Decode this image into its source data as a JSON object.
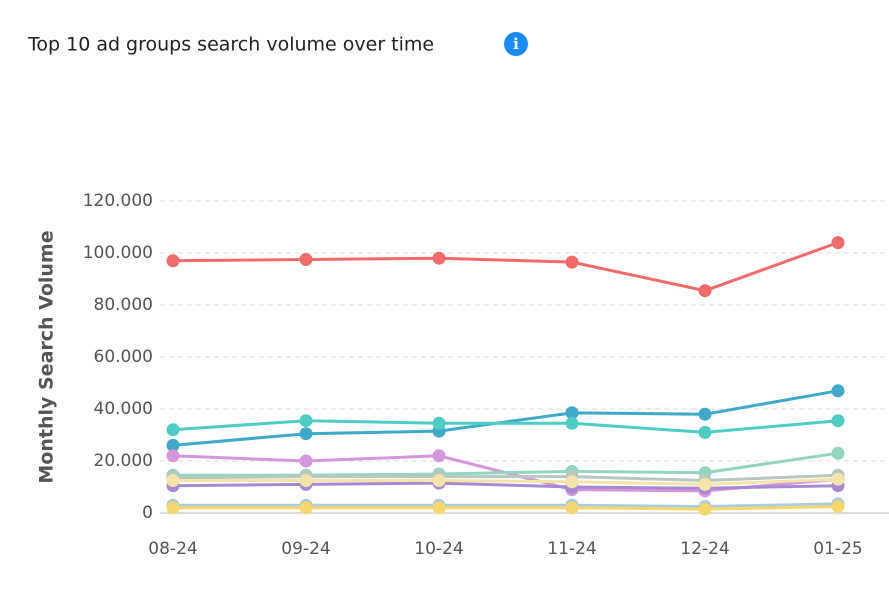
{
  "chart_data": {
    "type": "line",
    "title": "Top 10 ad groups search volume over time",
    "y_label": "Monthly Search Volume",
    "categories": [
      "08-24",
      "09-24",
      "10-24",
      "11-24",
      "12-24",
      "01-25"
    ],
    "ylim": [
      0,
      120000
    ],
    "yticks": [
      0,
      {
        "value": 20000,
        "label": "20.000"
      },
      {
        "value": 40000,
        "label": "40.000"
      },
      {
        "value": 60000,
        "label": "60.000"
      },
      {
        "value": 80000,
        "label": "80.000"
      },
      {
        "value": 100000,
        "label": "100.000"
      },
      {
        "value": 120000,
        "label": "120.000"
      }
    ],
    "grid": true,
    "series": [
      {
        "color": "#f26b6b",
        "values": [
          97000,
          97500,
          98000,
          96500,
          85500,
          104000
        ]
      },
      {
        "color": "#3fa9c9",
        "values": [
          26000,
          30500,
          31500,
          38500,
          38000,
          47000
        ]
      },
      {
        "color": "#4ecdc4",
        "values": [
          32000,
          35500,
          34500,
          34500,
          31000,
          35500
        ]
      },
      {
        "color": "#d597dc",
        "values": [
          22000,
          20000,
          22000,
          9000,
          8500,
          13000
        ]
      },
      {
        "color": "#93d5c0",
        "values": [
          14500,
          14500,
          15000,
          16000,
          15500,
          23000
        ]
      },
      {
        "color": "#a88ad4",
        "values": [
          10500,
          11000,
          11500,
          10000,
          9500,
          10500
        ]
      },
      {
        "color": "#b8c7c0",
        "values": [
          13500,
          14000,
          14000,
          14000,
          12500,
          14500
        ]
      },
      {
        "color": "#f4e4a8",
        "values": [
          12500,
          12500,
          12500,
          12000,
          11000,
          13000
        ]
      },
      {
        "color": "#a8cde0",
        "values": [
          3000,
          3000,
          3000,
          3000,
          2500,
          3500
        ]
      },
      {
        "color": "#f5d76e",
        "values": [
          2000,
          2000,
          2000,
          2000,
          1500,
          2500
        ]
      }
    ]
  }
}
